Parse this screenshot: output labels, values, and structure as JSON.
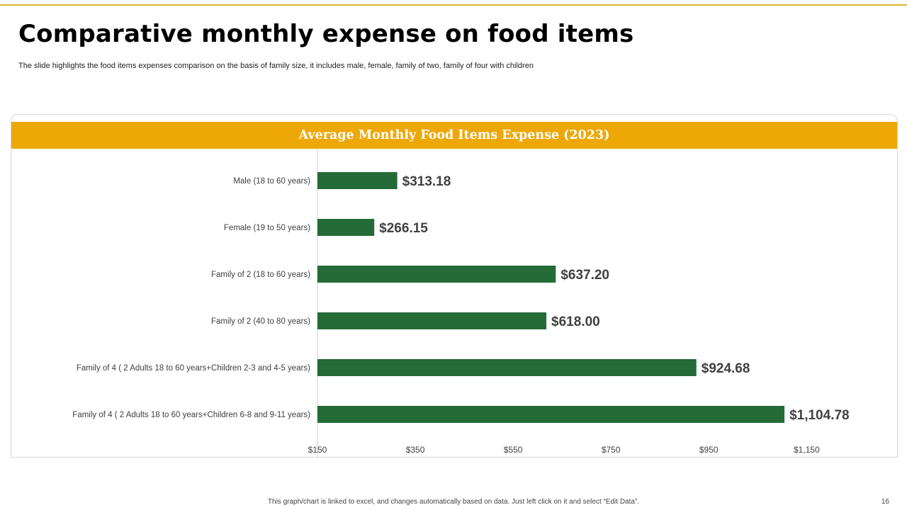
{
  "slide": {
    "title": "Comparative monthly expense on food items",
    "subtitle": "The slide highlights the food items expenses comparison on the basis of family size, it includes male, female, family of two, family of four with children",
    "footer_note": "This graph/chart is linked to excel, and changes automatically based on data. Just left click on it and select “Edit Data”.",
    "page_number": "16"
  },
  "colors": {
    "accent": "#eda808",
    "bar": "#246b37",
    "rule": "#d9b62a"
  },
  "chart_data": {
    "type": "bar",
    "orientation": "horizontal",
    "title": "Average Monthly Food Items Expense (2023)",
    "categories": [
      "Male (18 to 60 years)",
      "Female (19 to 50 years)",
      "Family of 2 (18 to 60 years)",
      "Family of 2 (40 to 80 years)",
      "Family of 4 ( 2 Adults  18 to 60 years+Children 2-3 and 4-5 years)",
      "Family of 4 ( 2 Adults  18 to 60 years+Children 6-8 and 9-11 years)"
    ],
    "values": [
      313.18,
      266.15,
      637.2,
      618.0,
      924.68,
      1104.78
    ],
    "data_labels": [
      "$313.18",
      "$266.15",
      "$637.20",
      "$618.00",
      "$924.68",
      "$1,104.78"
    ],
    "xlim": [
      150,
      1250
    ],
    "x_ticks": [
      150,
      350,
      550,
      750,
      950,
      1150
    ],
    "x_tick_labels": [
      "$150",
      "$350",
      "$550",
      "$750",
      "$950",
      "$1,150"
    ],
    "grid": false,
    "legend": "none"
  }
}
